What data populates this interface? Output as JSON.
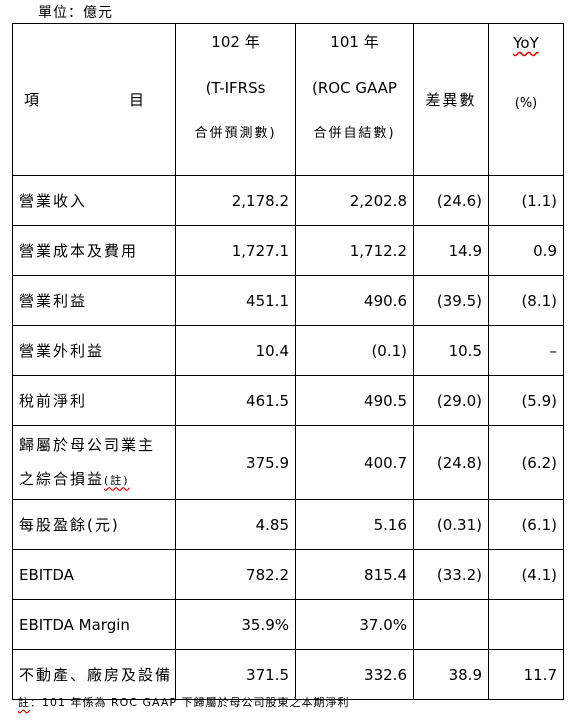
{
  "unit_label": "單位：億元",
  "header": {
    "item": "項　　目",
    "col_2013": [
      "102 年",
      "(T-IFRSs",
      "合併預測數)"
    ],
    "col_2012": [
      "101 年",
      "(ROC GAAP",
      "合併自結數)"
    ],
    "diff": "差異數",
    "yoy": [
      "YoY",
      "(%)"
    ]
  },
  "rows": [
    {
      "label": "營業收入",
      "v2013": "2,178.2",
      "v2012": "2,202.8",
      "diff": "(24.6)",
      "yoy": "(1.1)"
    },
    {
      "label": "營業成本及費用",
      "v2013": "1,727.1",
      "v2012": "1,712.2",
      "diff": "14.9",
      "yoy": "0.9"
    },
    {
      "label": "營業利益",
      "v2013": "451.1",
      "v2012": "490.6",
      "diff": "(39.5)",
      "yoy": "(8.1)"
    },
    {
      "label": "營業外利益",
      "v2013": "10.4",
      "v2012": "(0.1)",
      "diff": "10.5",
      "yoy": "–"
    },
    {
      "label": "稅前淨利",
      "v2013": "461.5",
      "v2012": "490.5",
      "diff": "(29.0)",
      "yoy": "(5.9)"
    },
    {
      "label_line1": "歸屬於母公司業主",
      "label_line2": "之綜合損益",
      "label_note": "(註)",
      "v2013": "375.9",
      "v2012": "400.7",
      "diff": "(24.8)",
      "yoy": "(6.2)"
    },
    {
      "label": "每股盈餘(元)",
      "v2013": "4.85",
      "v2012": "5.16",
      "diff": "(0.31)",
      "yoy": "(6.1)"
    },
    {
      "label": "EBITDA",
      "v2013": "782.2",
      "v2012": "815.4",
      "diff": "(33.2)",
      "yoy": "(4.1)"
    },
    {
      "label": "EBITDA Margin",
      "v2013": "35.9%",
      "v2012": "37.0%",
      "diff": "",
      "yoy": ""
    },
    {
      "label": "不動產、廠房及設備",
      "v2013": "371.5",
      "v2012": "332.6",
      "diff": "38.9",
      "yoy": "11.7"
    }
  ],
  "footnote": {
    "marker": "註",
    "text": "：101 年係為 ROC GAAP 下歸屬於母公司股東之本期淨利"
  }
}
